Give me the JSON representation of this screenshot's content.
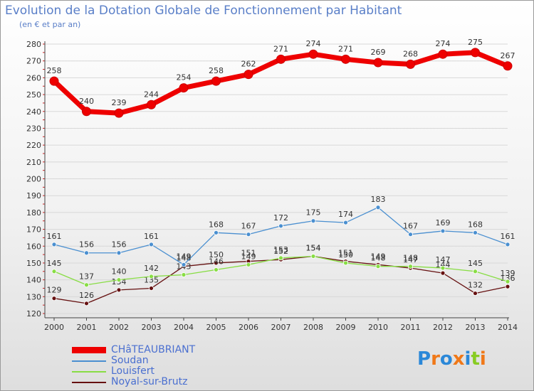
{
  "chart_data": {
    "type": "line",
    "title": "Evolution de la Dotation Globale de Fonctionnement par Habitant",
    "subtitle": "(en € et par an)",
    "x": [
      "2000",
      "2001",
      "2002",
      "2003",
      "2004",
      "2005",
      "2006",
      "2007",
      "2008",
      "2009",
      "2010",
      "2011",
      "2012",
      "2013",
      "2014"
    ],
    "ylim": [
      120,
      280
    ],
    "yticks": [
      120,
      130,
      140,
      150,
      160,
      170,
      180,
      190,
      200,
      210,
      220,
      230,
      240,
      250,
      260,
      270,
      280
    ],
    "series": [
      {
        "name": "CHâTEAUBRIANT",
        "color": "#ee0000",
        "values": [
          258,
          240,
          239,
          244,
          254,
          258,
          262,
          271,
          274,
          271,
          269,
          268,
          274,
          275,
          267
        ]
      },
      {
        "name": "Soudan",
        "color": "#4a8fd0",
        "values": [
          161,
          156,
          156,
          161,
          149,
          168,
          167,
          172,
          175,
          174,
          183,
          167,
          169,
          168,
          161
        ]
      },
      {
        "name": "Louisfert",
        "color": "#88dd44",
        "values": [
          145,
          137,
          140,
          142,
          143,
          146,
          149,
          153,
          154,
          150,
          148,
          148,
          147,
          145,
          139
        ]
      },
      {
        "name": "Noyal-sur-Brutz",
        "color": "#661111",
        "values": [
          129,
          126,
          134,
          135,
          148,
          150,
          151,
          152,
          154,
          151,
          149,
          147,
          144,
          132,
          136
        ]
      }
    ]
  },
  "logo": {
    "text": "Proxiti",
    "letter_colors": [
      "#2b88d8",
      "#f07818",
      "#2b88d8",
      "#f07818",
      "#2b88d8",
      "#88cc22",
      "#f07818"
    ]
  }
}
